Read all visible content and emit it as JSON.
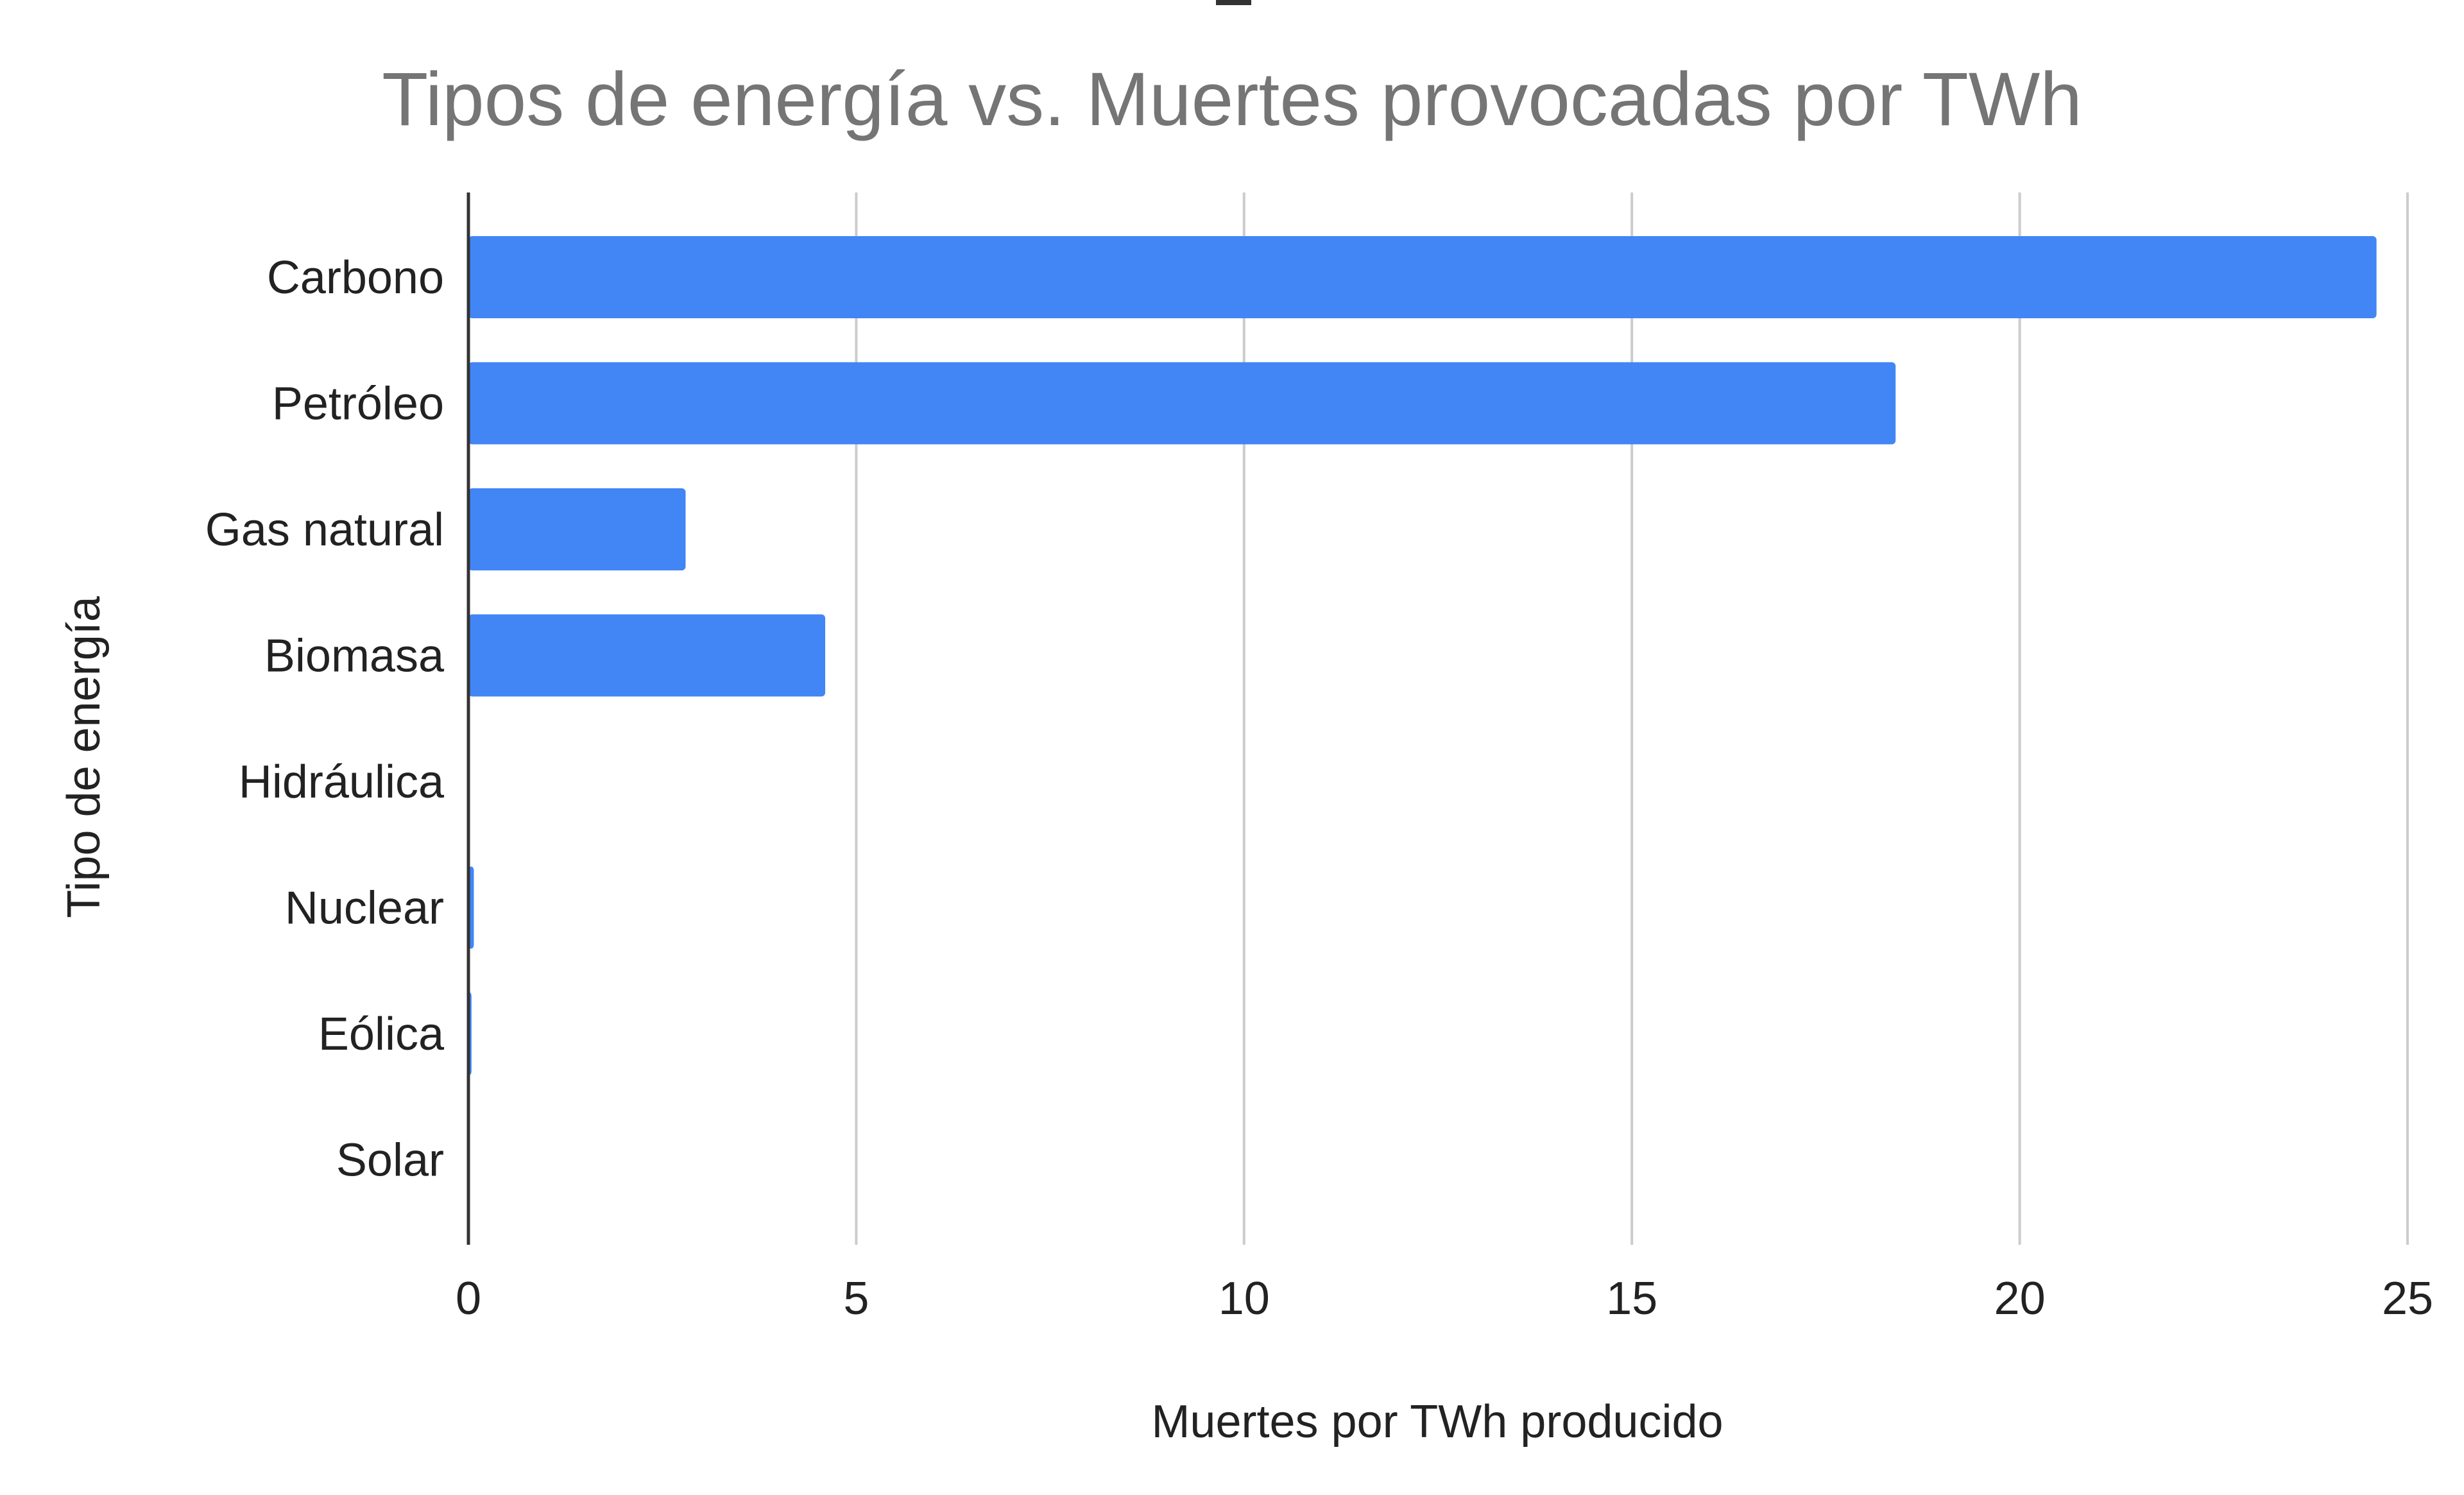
{
  "chart_data": {
    "type": "bar",
    "orientation": "horizontal",
    "title": "Tipos de energía vs. Muertes provocadas por TWh",
    "xlabel": "Muertes por TWh producido",
    "ylabel": "Tipo de energía",
    "categories": [
      "Carbono",
      "Petróleo",
      "Gas natural",
      "Biomasa",
      "Hidráulica",
      "Nuclear",
      "Eólica",
      "Solar"
    ],
    "values": [
      24.6,
      18.4,
      2.8,
      4.6,
      0.02,
      0.07,
      0.04,
      0.02
    ],
    "xlim": [
      0,
      25
    ],
    "xticks": [
      0,
      5,
      10,
      15,
      20,
      25
    ],
    "grid": true,
    "legend": "none",
    "colors": {
      "bar": "#4285f4",
      "title": "#757575",
      "text": "#222222",
      "grid": "#cccccc",
      "axis": "#333333"
    }
  }
}
